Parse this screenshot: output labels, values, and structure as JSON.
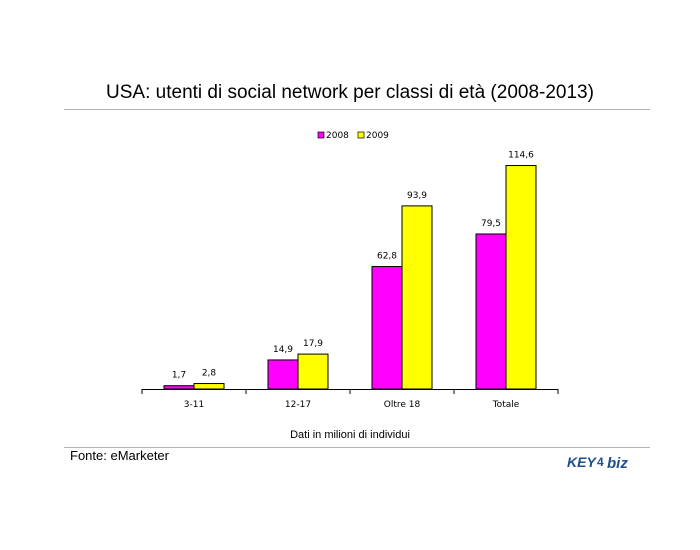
{
  "slide": {
    "title": "USA: utenti di social network per classi di età (2008-2013)",
    "source": "Fonte: eMarketer",
    "note": "Dati in milioni di individui",
    "logo_text": "KEY4biz"
  },
  "colors": {
    "series_2008": "#ff00ff",
    "series_2009": "#ffff00",
    "outline": "#000000",
    "rule": "#b3b3b3"
  },
  "chart_data": {
    "type": "bar",
    "title": "",
    "xlabel": "",
    "ylabel": "",
    "categories": [
      "3-11",
      "12-17",
      "Oltre 18",
      "Totale"
    ],
    "series": [
      {
        "name": "2008",
        "values": [
          1.7,
          14.9,
          62.8,
          79.5
        ],
        "labels": [
          "1,7",
          "14,9",
          "62,8",
          "79,5"
        ]
      },
      {
        "name": "2009",
        "values": [
          2.8,
          17.9,
          93.9,
          114.6
        ],
        "labels": [
          "2,8",
          "17,9",
          "93,9",
          "114,6"
        ]
      }
    ],
    "ylim": [
      0,
      120
    ],
    "grid": false,
    "legend": "top-center"
  }
}
